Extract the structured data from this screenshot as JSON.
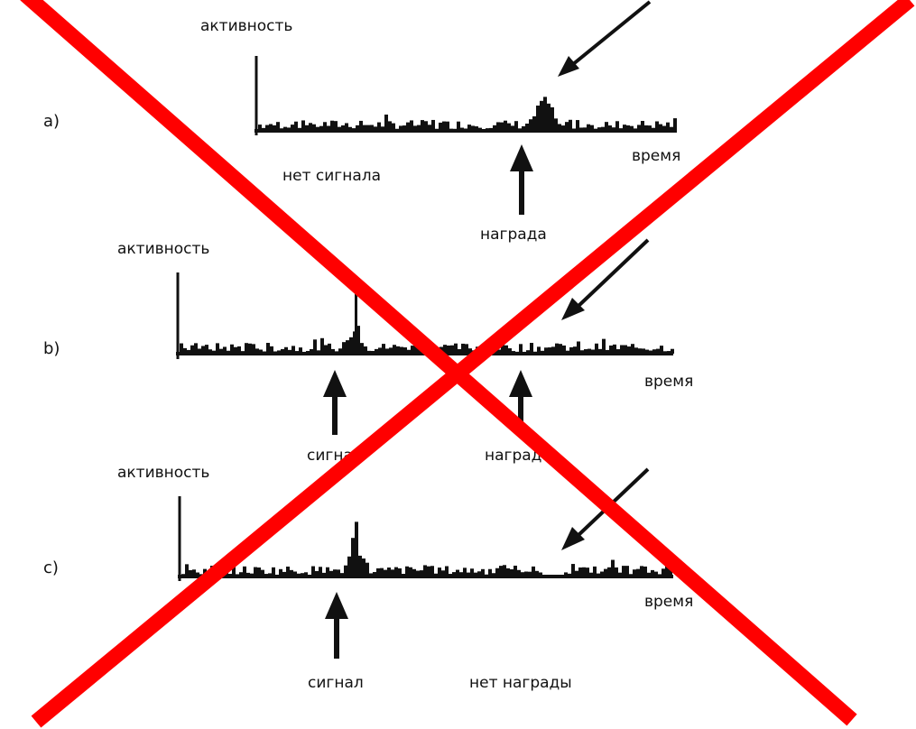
{
  "panels": [
    {
      "id": "a",
      "panel_label": "a)",
      "y_label": "активность",
      "x_label": "время",
      "annotations": [
        "нет сигнала",
        "награда"
      ],
      "has_signal": false,
      "has_reward": true
    },
    {
      "id": "b",
      "panel_label": "b)",
      "y_label": "активность",
      "x_label": "время",
      "annotations": [
        "сигнал",
        "награда"
      ],
      "has_signal": true,
      "has_reward": true
    },
    {
      "id": "c",
      "panel_label": "c)",
      "y_label": "активность",
      "x_label": "время",
      "annotations": [
        "сигнал",
        "нет награды"
      ],
      "has_signal": true,
      "has_reward": false
    }
  ],
  "overlay": {
    "type": "cross",
    "color": "#ff0000"
  },
  "colors": {
    "trace": "#111111",
    "cross": "#ff0000"
  }
}
